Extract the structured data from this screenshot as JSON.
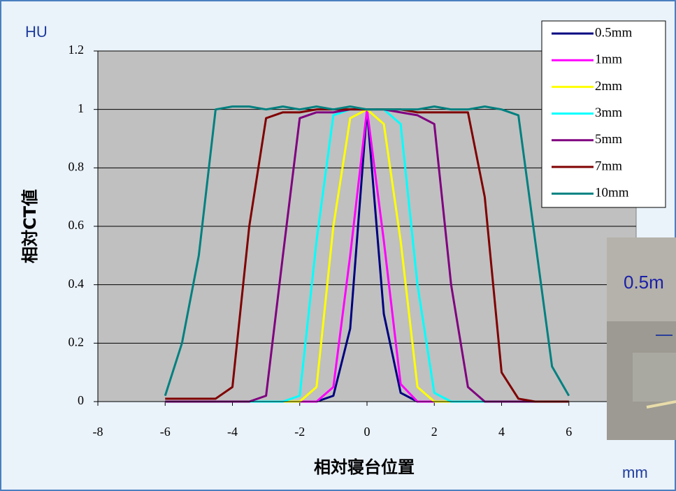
{
  "chart_data": {
    "type": "line",
    "y_unit": "HU",
    "x_unit": "mm",
    "ylabel": "相対CT値",
    "xlabel": "相対寝台位置",
    "inset_label": "0.5m",
    "xlim": [
      -8,
      8
    ],
    "xticks": [
      -8,
      -6,
      -4,
      -2,
      0,
      2,
      4,
      6
    ],
    "ylim": [
      0,
      1.2
    ],
    "yticks": [
      0,
      0.2,
      0.4,
      0.6,
      0.8,
      1,
      1.2
    ],
    "grid": true,
    "legend": "top-right",
    "x": [
      -6,
      -5.5,
      -5,
      -4.5,
      -4,
      -3.5,
      -3,
      -2.5,
      -2,
      -1.5,
      -1,
      -0.5,
      0,
      0.5,
      1,
      1.5,
      2,
      2.5,
      3,
      3.5,
      4,
      4.5,
      5,
      5.5,
      6
    ],
    "series": [
      {
        "name": "0.5mm",
        "color": "#000080",
        "values": [
          0,
          0,
          0,
          0,
          0,
          0,
          0,
          0,
          0,
          0,
          0.02,
          0.25,
          1,
          0.3,
          0.03,
          0,
          0,
          0,
          0,
          0,
          0,
          0,
          0,
          0,
          0
        ]
      },
      {
        "name": "1mm",
        "color": "#ff00ff",
        "values": [
          0,
          0,
          0,
          0,
          0,
          0,
          0,
          0,
          0,
          0,
          0.05,
          0.5,
          1,
          0.55,
          0.06,
          0,
          0,
          0,
          0,
          0,
          0,
          0,
          0,
          0,
          0
        ]
      },
      {
        "name": "2mm",
        "color": "#ffff00",
        "values": [
          0,
          0,
          0,
          0,
          0,
          0,
          0,
          0,
          0,
          0.05,
          0.6,
          0.97,
          1,
          0.95,
          0.55,
          0.05,
          0,
          0,
          0,
          0,
          0,
          0,
          0,
          0,
          0
        ]
      },
      {
        "name": "3mm",
        "color": "#00ffff",
        "values": [
          0,
          0,
          0,
          0,
          0,
          0,
          0,
          0,
          0.02,
          0.55,
          0.98,
          1,
          1,
          1,
          0.95,
          0.4,
          0.03,
          0,
          0,
          0,
          0,
          0,
          0,
          0,
          0
        ]
      },
      {
        "name": "5mm",
        "color": "#800080",
        "values": [
          0,
          0,
          0,
          0,
          0,
          0,
          0.02,
          0.5,
          0.97,
          0.99,
          0.99,
          1,
          1,
          1,
          0.99,
          0.98,
          0.95,
          0.4,
          0.05,
          0,
          0,
          0,
          0,
          0,
          0
        ]
      },
      {
        "name": "7mm",
        "color": "#800000",
        "values": [
          0.01,
          0.01,
          0.01,
          0.01,
          0.05,
          0.6,
          0.97,
          0.99,
          0.99,
          1,
          1,
          1,
          1,
          1,
          1,
          0.99,
          0.99,
          0.99,
          0.99,
          0.7,
          0.1,
          0.01,
          0,
          0,
          0
        ]
      },
      {
        "name": "10mm",
        "color": "#008080",
        "values": [
          0.02,
          0.2,
          0.5,
          1,
          1.01,
          1.01,
          1,
          1.01,
          1,
          1.01,
          1,
          1.01,
          1,
          1,
          1,
          1,
          1.01,
          1,
          1,
          1.01,
          1,
          0.98,
          0.55,
          0.12,
          0.02
        ]
      }
    ]
  }
}
